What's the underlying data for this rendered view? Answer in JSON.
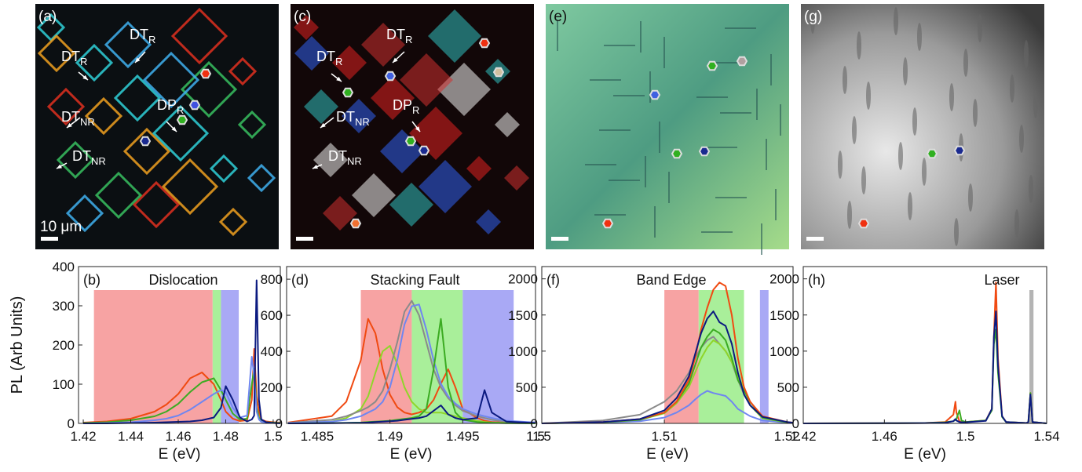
{
  "images": [
    {
      "label": "(a)",
      "annotations": [
        {
          "text": "DT",
          "sub": "R"
        },
        {
          "text": "DT",
          "sub": "R"
        },
        {
          "text": "DT",
          "sub": "NR"
        },
        {
          "text": "DP",
          "sub": "R"
        },
        {
          "text": "DT",
          "sub": "NR"
        }
      ],
      "scale": "10 μm"
    },
    {
      "label": "(c)",
      "annotations": [
        {
          "text": "DT",
          "sub": "R"
        },
        {
          "text": "DT",
          "sub": "R"
        },
        {
          "text": "DT",
          "sub": "NR"
        },
        {
          "text": "DP",
          "sub": "R"
        },
        {
          "text": "DT",
          "sub": "NR"
        }
      ]
    },
    {
      "label": "(e)"
    },
    {
      "label": "(g)"
    }
  ],
  "chart_data": [
    {
      "type": "line",
      "label": "(b)",
      "title": "Dislocation",
      "ylabel": "PL (Arb Units)",
      "xlabel": "E (eV)",
      "xlim": [
        1.418,
        1.503
      ],
      "ylim": [
        0,
        400
      ],
      "xticks": [
        1.42,
        1.44,
        1.46,
        1.48,
        1.5
      ],
      "yticks": [
        0,
        100,
        200,
        300,
        400
      ],
      "spans": [
        {
          "x0": 1.4245,
          "x1": 1.4745,
          "color": "#f7a3a3"
        },
        {
          "x0": 1.4745,
          "x1": 1.478,
          "color": "#a9ef9a"
        },
        {
          "x0": 1.478,
          "x1": 1.4855,
          "color": "#a9a9f5"
        }
      ],
      "x": [
        1.42,
        1.43,
        1.44,
        1.45,
        1.455,
        1.46,
        1.465,
        1.47,
        1.475,
        1.478,
        1.48,
        1.483,
        1.486,
        1.489,
        1.491,
        1.492,
        1.493,
        1.494,
        1.495,
        1.497,
        1.5,
        1.503
      ],
      "series": [
        {
          "color": "#f04a12",
          "values": [
            2,
            5,
            12,
            30,
            48,
            75,
            115,
            130,
            100,
            60,
            30,
            12,
            6,
            8,
            60,
            190,
            70,
            30,
            10,
            5,
            3,
            2
          ]
        },
        {
          "color": "#3cab22",
          "values": [
            1,
            3,
            8,
            18,
            30,
            50,
            80,
            105,
            115,
            85,
            60,
            25,
            10,
            12,
            100,
            140,
            40,
            15,
            6,
            3,
            2,
            1
          ]
        },
        {
          "color": "#6f86f0",
          "values": [
            0,
            1,
            3,
            8,
            12,
            20,
            35,
            55,
            75,
            85,
            80,
            40,
            15,
            20,
            170,
            120,
            30,
            10,
            4,
            2,
            1,
            0
          ]
        },
        {
          "color": "#0b1a80",
          "values": [
            0,
            0,
            1,
            2,
            3,
            4,
            5,
            8,
            15,
            40,
            95,
            60,
            15,
            5,
            10,
            20,
            365,
            60,
            10,
            3,
            1,
            0
          ]
        }
      ]
    },
    {
      "type": "line",
      "label": "(d)",
      "title": "Stacking Fault",
      "xlabel": "E (eV)",
      "xlim": [
        1.4829,
        1.5
      ],
      "ylim": [
        0,
        870
      ],
      "xticks": [
        1.485,
        1.49,
        1.495,
        1.5
      ],
      "yticks": [
        0,
        200,
        400,
        600,
        800
      ],
      "spans": [
        {
          "x0": 1.488,
          "x1": 1.4915,
          "color": "#f7a3a3"
        },
        {
          "x0": 1.4915,
          "x1": 1.495,
          "color": "#a9ef9a"
        },
        {
          "x0": 1.495,
          "x1": 1.4985,
          "color": "#a9a9f5"
        }
      ],
      "x": [
        1.483,
        1.486,
        1.487,
        1.488,
        1.4885,
        1.489,
        1.4895,
        1.49,
        1.4905,
        1.491,
        1.4915,
        1.492,
        1.4925,
        1.493,
        1.4935,
        1.494,
        1.4945,
        1.495,
        1.496,
        1.4965,
        1.497,
        1.498,
        1.5
      ],
      "series": [
        {
          "color": "#f04a12",
          "values": [
            5,
            40,
            120,
            350,
            580,
            500,
            300,
            160,
            90,
            60,
            50,
            60,
            80,
            130,
            220,
            300,
            200,
            80,
            30,
            15,
            8,
            4,
            2
          ]
        },
        {
          "color": "#8fd62a",
          "values": [
            2,
            10,
            30,
            80,
            150,
            280,
            400,
            430,
            330,
            200,
            120,
            80,
            60,
            60,
            60,
            50,
            40,
            30,
            15,
            8,
            5,
            3,
            1
          ]
        },
        {
          "color": "#8a8a8a",
          "values": [
            3,
            20,
            40,
            70,
            90,
            120,
            180,
            300,
            450,
            620,
            680,
            600,
            450,
            300,
            200,
            140,
            100,
            70,
            40,
            30,
            20,
            10,
            5
          ]
        },
        {
          "color": "#6f86f0",
          "values": [
            2,
            10,
            20,
            40,
            60,
            80,
            120,
            200,
            350,
            550,
            650,
            660,
            520,
            350,
            220,
            150,
            110,
            80,
            50,
            40,
            30,
            15,
            5
          ]
        },
        {
          "color": "#3cab22",
          "values": [
            0,
            2,
            3,
            5,
            8,
            10,
            12,
            15,
            20,
            25,
            30,
            40,
            80,
            300,
            580,
            200,
            60,
            20,
            8,
            5,
            3,
            1,
            0
          ]
        },
        {
          "color": "#0b1a80",
          "values": [
            0,
            1,
            2,
            3,
            5,
            8,
            10,
            12,
            15,
            20,
            25,
            30,
            40,
            70,
            100,
            50,
            30,
            20,
            30,
            185,
            60,
            10,
            2
          ]
        }
      ]
    },
    {
      "type": "line",
      "label": "(f)",
      "title": "Band Edge",
      "xlabel": "E (eV)",
      "xlim": [
        1.5,
        1.5205
      ],
      "ylim": [
        0,
        2170
      ],
      "xticks": [
        1.5,
        1.51,
        1.52
      ],
      "yticks": [
        0,
        500,
        1000,
        1500,
        2000
      ],
      "spans": [
        {
          "x0": 1.51,
          "x1": 1.5128,
          "color": "#f7a3a3"
        },
        {
          "x0": 1.5128,
          "x1": 1.5165,
          "color": "#a9ef9a"
        },
        {
          "x0": 1.5178,
          "x1": 1.5185,
          "color": "#a9a9f5"
        }
      ],
      "x": [
        1.5,
        1.505,
        1.508,
        1.51,
        1.511,
        1.512,
        1.5125,
        1.513,
        1.5135,
        1.514,
        1.5145,
        1.515,
        1.5155,
        1.516,
        1.5165,
        1.517,
        1.518,
        1.52,
        1.5205
      ],
      "series": [
        {
          "color": "#8a8a8a",
          "values": [
            0,
            40,
            120,
            300,
            450,
            700,
            900,
            1050,
            1150,
            1200,
            1100,
            1000,
            850,
            600,
            400,
            250,
            80,
            20,
            10
          ]
        },
        {
          "color": "#6f86f0",
          "values": [
            0,
            10,
            30,
            80,
            150,
            250,
            330,
            400,
            450,
            420,
            400,
            380,
            300,
            200,
            150,
            100,
            40,
            10,
            5
          ]
        },
        {
          "color": "#8fd62a",
          "values": [
            0,
            15,
            50,
            140,
            280,
            500,
            700,
            900,
            1050,
            1150,
            1100,
            1000,
            850,
            650,
            500,
            250,
            70,
            15,
            5
          ]
        },
        {
          "color": "#3cab22",
          "values": [
            0,
            15,
            50,
            150,
            300,
            550,
            800,
            1050,
            1200,
            1300,
            1250,
            1150,
            900,
            600,
            450,
            300,
            80,
            15,
            5
          ]
        },
        {
          "color": "#f04a12",
          "values": [
            0,
            20,
            60,
            150,
            300,
            600,
            900,
            1300,
            1600,
            1850,
            1950,
            1900,
            1500,
            900,
            500,
            300,
            100,
            20,
            10
          ]
        },
        {
          "color": "#0b1a80",
          "values": [
            0,
            20,
            60,
            180,
            350,
            650,
            950,
            1250,
            1450,
            1550,
            1400,
            1350,
            1100,
            700,
            400,
            250,
            90,
            20,
            10
          ]
        }
      ]
    },
    {
      "type": "line",
      "label": "(h)",
      "title": "Laser",
      "xlabel": "E (eV)",
      "xlim": [
        1.42,
        1.54
      ],
      "ylim": [
        0,
        2170
      ],
      "xticks": [
        1.42,
        1.46,
        1.5,
        1.54
      ],
      "yticks": [
        0,
        500,
        1000,
        1500,
        2000
      ],
      "spans": [
        {
          "x0": 1.5315,
          "x1": 1.5335,
          "color": "#b4b4b4"
        }
      ],
      "x": [
        1.42,
        1.46,
        1.48,
        1.49,
        1.494,
        1.495,
        1.4955,
        1.497,
        1.498,
        1.5,
        1.51,
        1.513,
        1.514,
        1.515,
        1.516,
        1.518,
        1.52,
        1.53,
        1.531,
        1.532,
        1.533,
        1.54
      ],
      "series": [
        {
          "color": "#f04a12",
          "values": [
            0,
            2,
            5,
            20,
            120,
            300,
            150,
            30,
            20,
            20,
            40,
            200,
            1200,
            1950,
            900,
            100,
            20,
            5,
            20,
            420,
            20,
            0
          ]
        },
        {
          "color": "#3cab22",
          "values": [
            0,
            2,
            5,
            15,
            30,
            50,
            60,
            180,
            40,
            20,
            40,
            180,
            1100,
            1300,
            700,
            90,
            20,
            5,
            20,
            420,
            20,
            0
          ]
        },
        {
          "color": "#0b1a80",
          "values": [
            0,
            2,
            4,
            10,
            30,
            60,
            40,
            20,
            15,
            15,
            35,
            200,
            1200,
            1550,
            800,
            100,
            20,
            5,
            20,
            400,
            20,
            0
          ]
        }
      ]
    }
  ]
}
